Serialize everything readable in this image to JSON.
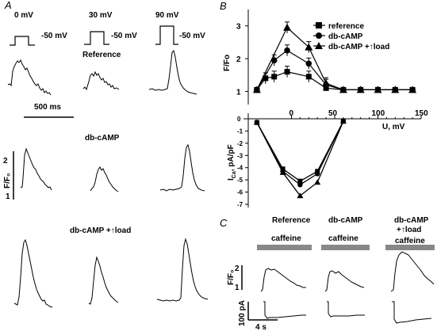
{
  "panel_letters": {
    "a": "A",
    "b": "B",
    "c": "C"
  },
  "panel_a": {
    "voltages": [
      "0 mV",
      "30 mV",
      "90 mV"
    ],
    "holding": "-50 mV",
    "row_titles": [
      "Reference",
      "db-cAMP",
      "db-cAMP +↑load"
    ],
    "scale_time": "500 ms",
    "scale_ff0_value": "2",
    "scale_ff0_base": "1",
    "ylabel": "F/F₀"
  },
  "chart_data": [
    {
      "type": "line",
      "panel": "B-top",
      "ylabel": "F/Fo",
      "ylim": [
        0.6,
        3.5
      ],
      "yticks": [
        "1",
        "2",
        "3"
      ],
      "xlim": [
        -50,
        150
      ],
      "series": [
        {
          "name": "reference",
          "marker": "square",
          "x": [
            -40,
            -30,
            -20,
            -5,
            20,
            40,
            60,
            80,
            100,
            120,
            140
          ],
          "y": [
            1.05,
            1.4,
            1.45,
            1.6,
            1.45,
            1.1,
            1.05,
            1.05,
            1.05,
            1.05,
            1.05
          ]
        },
        {
          "name": "db-cAMP",
          "marker": "circle",
          "x": [
            -40,
            -20,
            -5,
            20,
            40,
            60,
            80,
            100,
            120,
            140
          ],
          "y": [
            1.05,
            1.95,
            2.25,
            1.85,
            1.2,
            1.05,
            1.05,
            1.05,
            1.05,
            1.05
          ]
        },
        {
          "name": "db-cAMP +↑load",
          "marker": "triangle",
          "x": [
            -40,
            -5,
            20,
            40,
            60,
            80,
            100,
            120,
            140
          ],
          "y": [
            1.05,
            2.95,
            2.35,
            1.25,
            1.05,
            1.05,
            1.05,
            1.05,
            1.05
          ]
        }
      ]
    },
    {
      "type": "line",
      "panel": "B-bottom",
      "xlabel": "U, mV",
      "ylabel": "I",
      "ylabel_sub": "Ca",
      "ylabel_unit": ", pA/pF",
      "xticks": [
        0,
        50,
        100,
        150
      ],
      "yticks": [
        "0",
        "-1",
        "-2",
        "-3",
        "-4",
        "-5",
        "-6",
        "-7"
      ],
      "xlim": [
        -50,
        150
      ],
      "ylim": [
        -7,
        0
      ],
      "series": [
        {
          "name": "reference",
          "x": [
            -40,
            -10,
            10,
            30,
            60
          ],
          "y": [
            -0.3,
            -4.1,
            -5.1,
            -4.3,
            -0.2
          ]
        },
        {
          "name": "db-cAMP",
          "x": [
            -40,
            -10,
            10,
            30,
            60
          ],
          "y": [
            -0.3,
            -4.3,
            -5.4,
            -4.5,
            -0.2
          ]
        },
        {
          "name": "db-cAMP +↑load",
          "x": [
            -40,
            -10,
            10,
            30,
            60
          ],
          "y": [
            -0.3,
            -4.4,
            -6.3,
            -5.2,
            -0.2
          ]
        }
      ]
    }
  ],
  "panel_c": {
    "titles": [
      "Reference",
      "db-cAMP",
      "db-cAMP\n+↑load"
    ],
    "titles_lines": [
      [
        "Reference"
      ],
      [
        "db-cAMP"
      ],
      [
        "db-cAMP",
        "+↑load"
      ]
    ],
    "caffeine": "caffeine",
    "scale_ff0_value": "2",
    "scale_ff0_base": "1",
    "ylabel": "F/F₀",
    "scale_current": "100 pA",
    "scale_time": "4 s"
  }
}
